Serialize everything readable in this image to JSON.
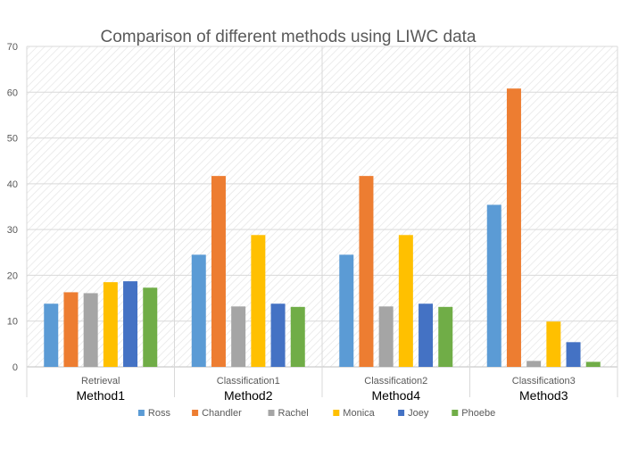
{
  "chart_data": {
    "type": "bar",
    "title": "Comparison of different methods using LIWC data",
    "categories": [
      {
        "sub": "Retrieval",
        "group": "Method1"
      },
      {
        "sub": "Classification1",
        "group": "Method2"
      },
      {
        "sub": "Classification2",
        "group": "Method4"
      },
      {
        "sub": "Classification3",
        "group": "Method3"
      }
    ],
    "series": [
      {
        "name": "Ross",
        "color": "#5B9BD5",
        "values": [
          13.8,
          24.5,
          24.5,
          35.4
        ]
      },
      {
        "name": "Chandler",
        "color": "#ED7D31",
        "values": [
          16.3,
          41.7,
          41.7,
          60.8
        ]
      },
      {
        "name": "Rachel",
        "color": "#A5A5A5",
        "values": [
          16.1,
          13.2,
          13.2,
          1.3
        ]
      },
      {
        "name": "Monica",
        "color": "#FFC000",
        "values": [
          18.5,
          28.8,
          28.8,
          9.9
        ]
      },
      {
        "name": "Joey",
        "color": "#4472C4",
        "values": [
          18.7,
          13.8,
          13.8,
          5.4
        ]
      },
      {
        "name": "Phoebe",
        "color": "#70AD47",
        "values": [
          17.3,
          13.1,
          13.1,
          1.1
        ]
      }
    ],
    "ylim": [
      0,
      70
    ],
    "yticks": [
      0,
      10,
      20,
      30,
      40,
      50,
      60,
      70
    ],
    "xlabel": "",
    "ylabel": "",
    "legend": "bottom",
    "grid": true
  }
}
